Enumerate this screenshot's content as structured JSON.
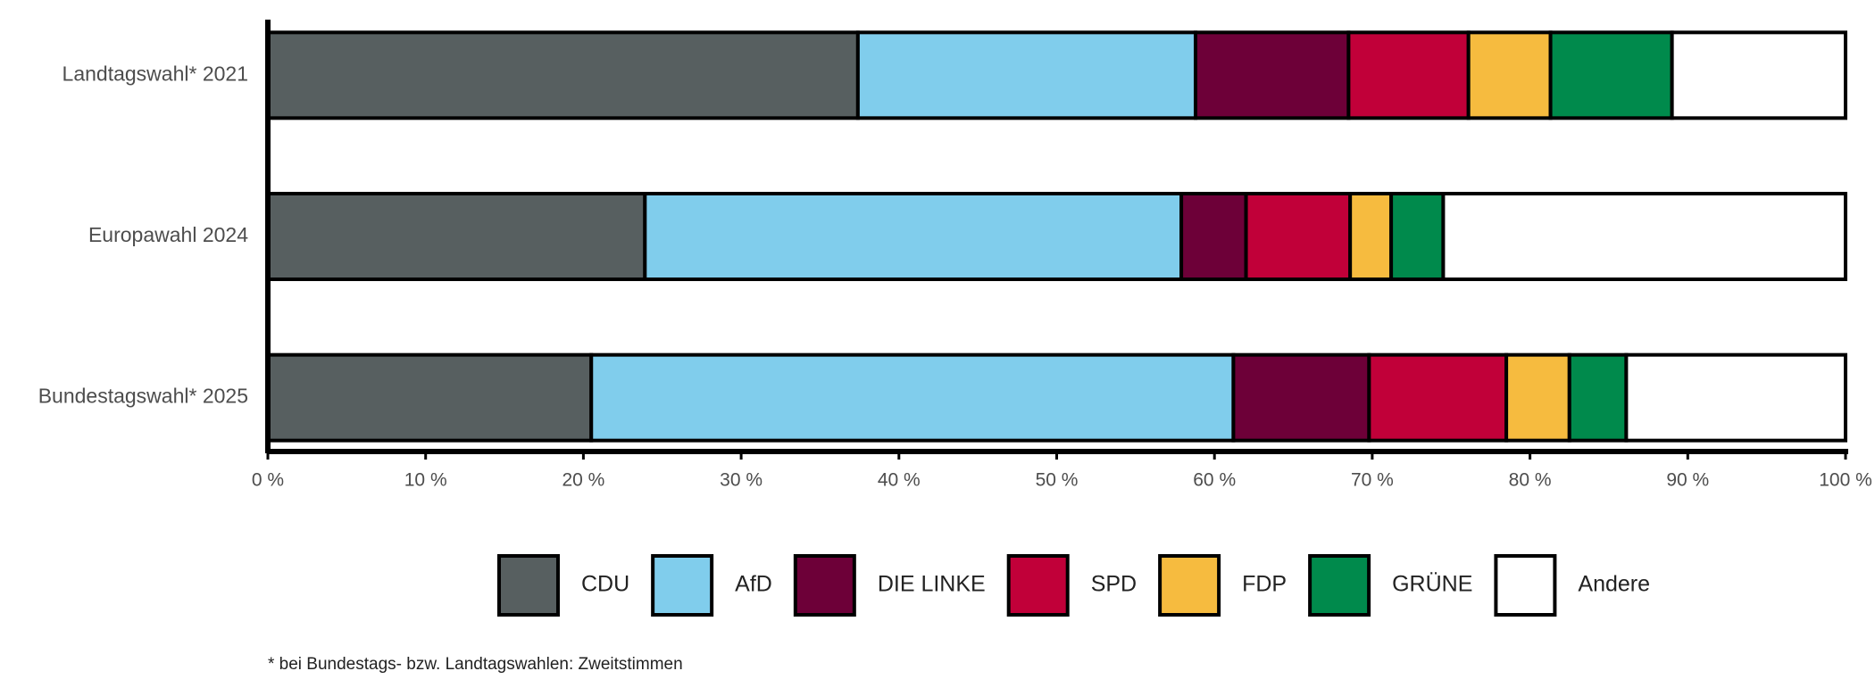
{
  "chart_data": {
    "type": "stacked-barh",
    "categories": [
      "Landtagswahl* 2021",
      "Europawahl 2024",
      "Bundestagswahl* 2025"
    ],
    "series": [
      {
        "name": "CDU",
        "color": "#575f60",
        "values": [
          37.4,
          23.9,
          20.5
        ]
      },
      {
        "name": "AfD",
        "color": "#80cdec",
        "values": [
          21.4,
          34.0,
          40.7
        ]
      },
      {
        "name": "DIE LINKE",
        "color": "#6d0038",
        "values": [
          9.7,
          4.1,
          8.6
        ]
      },
      {
        "name": "SPD",
        "color": "#c10039",
        "values": [
          7.6,
          6.6,
          8.7
        ]
      },
      {
        "name": "FDP",
        "color": "#f6bb3f",
        "values": [
          5.2,
          2.6,
          4.0
        ]
      },
      {
        "name": "GRÜNE",
        "color": "#008a4c",
        "values": [
          7.7,
          3.3,
          3.6
        ]
      },
      {
        "name": "Andere",
        "color": "#ffffff",
        "values": [
          11.0,
          25.5,
          13.9
        ]
      }
    ],
    "xlim": [
      0,
      100
    ],
    "xticks": [
      {
        "value": 0,
        "label": "0 %"
      },
      {
        "value": 10,
        "label": "10 %"
      },
      {
        "value": 20,
        "label": "20 %"
      },
      {
        "value": 30,
        "label": "30 %"
      },
      {
        "value": 40,
        "label": "40 %"
      },
      {
        "value": 50,
        "label": "50 %"
      },
      {
        "value": 60,
        "label": "60 %"
      },
      {
        "value": 70,
        "label": "70 %"
      },
      {
        "value": 80,
        "label": "80 %"
      },
      {
        "value": 90,
        "label": "90 %"
      },
      {
        "value": 100,
        "label": "100 %"
      }
    ],
    "footnote": "* bei Bundestags- bzw. Landtagswahlen: Zweitstimmen"
  }
}
